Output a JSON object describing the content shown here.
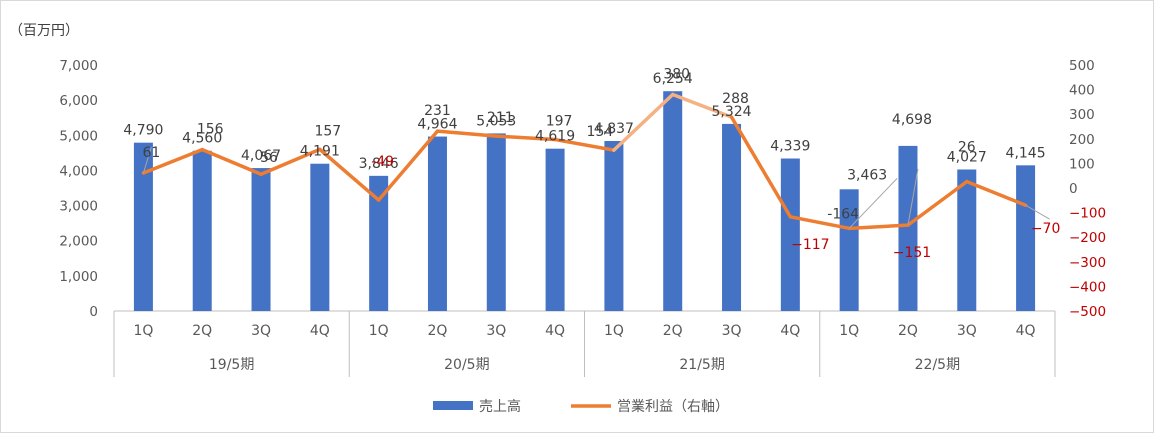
{
  "chart_data": {
    "type": "bar",
    "unit_label": "（百万円）",
    "categories": [
      "1Q",
      "2Q",
      "3Q",
      "4Q",
      "1Q",
      "2Q",
      "3Q",
      "4Q",
      "1Q",
      "2Q",
      "3Q",
      "4Q",
      "1Q",
      "2Q",
      "3Q",
      "4Q"
    ],
    "groups": [
      {
        "label": "19/5期",
        "count": 4
      },
      {
        "label": "20/5期",
        "count": 4
      },
      {
        "label": "21/5期",
        "count": 4
      },
      {
        "label": "22/5期",
        "count": 4
      }
    ],
    "series": [
      {
        "name": "売上高",
        "type": "bar",
        "axis": "left",
        "color": "#4472c4",
        "values": [
          4790,
          4560,
          4067,
          4191,
          3846,
          4964,
          5053,
          4619,
          4837,
          6254,
          5324,
          4339,
          3463,
          4698,
          4027,
          4145
        ],
        "labels": [
          "4,790",
          "4,560",
          "4,067",
          "4,191",
          "3,846",
          "4,964",
          "5,053",
          "4,619",
          "4,837",
          "6,254",
          "5,324",
          "4,339",
          "3,463",
          "4,698",
          "4,027",
          "4,145"
        ]
      },
      {
        "name": "営業利益（右軸）",
        "type": "line",
        "axis": "right",
        "color": "#ed7d31",
        "highlight_color": "#f4b183",
        "values": [
          61,
          156,
          56,
          157,
          -49,
          231,
          211,
          197,
          154,
          380,
          288,
          -117,
          -164,
          -151,
          26,
          -70
        ],
        "labels": [
          "61",
          "156",
          "56",
          "157",
          "-49",
          "231",
          "211",
          "197",
          "154",
          "380",
          "288",
          "−117",
          "-164",
          "−151",
          "26",
          "−70"
        ]
      }
    ],
    "y_left": {
      "min": 0,
      "max": 7000,
      "ticks": [
        "0",
        "1,000",
        "2,000",
        "3,000",
        "4,000",
        "5,000",
        "6,000",
        "7,000"
      ]
    },
    "y_right": {
      "min": -500,
      "max": 500,
      "ticks": [
        "−500",
        "−400",
        "−300",
        "−200",
        "−100",
        "0",
        "100",
        "200",
        "300",
        "400",
        "500"
      ]
    },
    "legend": {
      "position": "bottom",
      "items": [
        "売上高",
        "営業利益（右軸）"
      ]
    },
    "grid": false,
    "colors": {
      "negative_label": "#c00000",
      "axis_text": "#595959",
      "data_label": "#404040"
    }
  }
}
